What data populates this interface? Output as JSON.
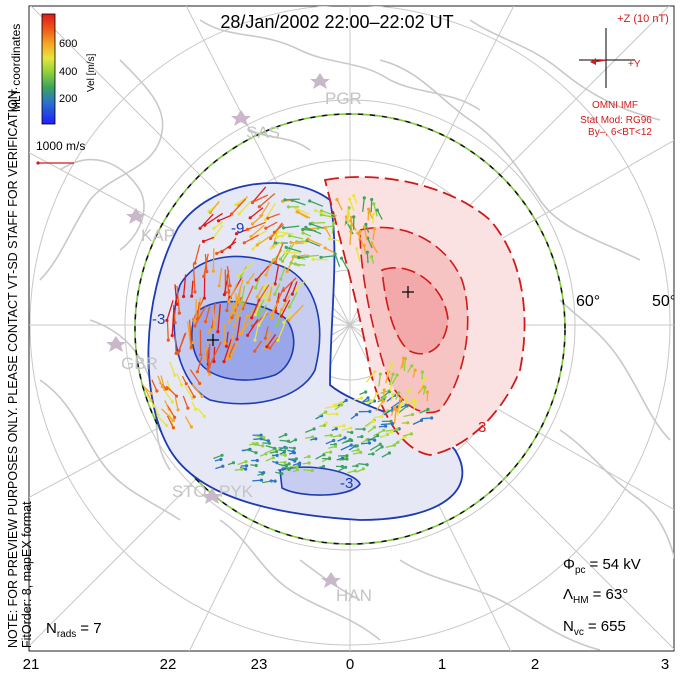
{
  "title": "28/Jan/2002 22:00–22:02 UT",
  "colorbar": {
    "label": "Vel [m/s]",
    "ticks": [
      "600",
      "400",
      "200"
    ],
    "colors": [
      "#1f1fff",
      "#2a74c9",
      "#3aa35d",
      "#8fd13a",
      "#e6e63c",
      "#f5a623",
      "#ef5a1a",
      "#e0191a"
    ]
  },
  "coords_label": "MLT coordinates",
  "scale_vector_label": "1000 m/s",
  "side_note": "NOTE: FOR PREVIEW PURPOSES ONLY. PLEASE CONTACT VT-SD STAFF FOR VERIFICATION.",
  "fit_order": "FitOrder: 8, mapEX format",
  "imf": {
    "z_label": "+Z (10 nT)",
    "y_label": "+Y",
    "source": "OMNI IMF",
    "model_line1": "Stat Mod: RG96",
    "model_line2": "By–, 6<BT<12"
  },
  "stations": [
    {
      "name": "PGR"
    },
    {
      "name": "SAS"
    },
    {
      "name": "KAP"
    },
    {
      "name": "GBR"
    },
    {
      "name": "STO"
    },
    {
      "name": "PYK"
    },
    {
      "name": "HAN"
    }
  ],
  "lat_labels": [
    "60°",
    "50°"
  ],
  "contour_labels": [
    "-9",
    "-3",
    "-3",
    "3"
  ],
  "stats": {
    "phi_sym": "Φ",
    "phi_sub": "pc",
    "phi_val": "= 54 kV",
    "lam_sym": "Λ",
    "lam_sub": "HM",
    "lam_val": "= 63°",
    "nvc_sym": "N",
    "nvc_sub": "vc",
    "nvc_val": "= 655",
    "nrads_sym": "N",
    "nrads_sub": "rads",
    "nrads_val": "= 7"
  },
  "mlt_axis": [
    "21",
    "22",
    "23",
    "0",
    "1",
    "2",
    "3"
  ]
}
